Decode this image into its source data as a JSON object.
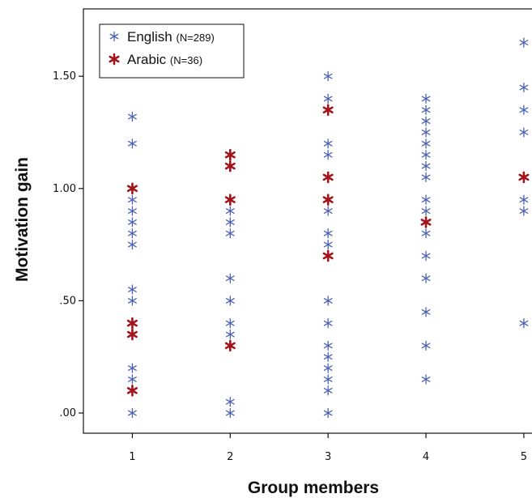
{
  "chart_data": {
    "type": "scatter",
    "xlabel": "Group members",
    "ylabel": "Motivation gain",
    "x_ticks": [
      "1",
      "2",
      "3",
      "4",
      "5"
    ],
    "y_ticks": [
      ".00",
      ".50",
      "1.00",
      "1.50"
    ],
    "xlim": [
      0.5,
      5.1
    ],
    "ylim": [
      -0.09,
      1.8
    ],
    "grid": false,
    "legend_position": "top-left",
    "marker": "asterisk",
    "series": [
      {
        "name": "English",
        "n_label": "(N=289)",
        "color": "#4b62b6",
        "points": [
          [
            1,
            1.32
          ],
          [
            1,
            1.2
          ],
          [
            1,
            0.95
          ],
          [
            1,
            0.9
          ],
          [
            1,
            0.85
          ],
          [
            1,
            0.8
          ],
          [
            1,
            0.75
          ],
          [
            1,
            0.55
          ],
          [
            1,
            0.5
          ],
          [
            1,
            0.2
          ],
          [
            1,
            0.15
          ],
          [
            1,
            0.0
          ],
          [
            2,
            0.9
          ],
          [
            2,
            0.85
          ],
          [
            2,
            0.8
          ],
          [
            2,
            0.6
          ],
          [
            2,
            0.5
          ],
          [
            2,
            0.4
          ],
          [
            2,
            0.35
          ],
          [
            2,
            0.05
          ],
          [
            2,
            0.0
          ],
          [
            3,
            1.5
          ],
          [
            3,
            1.4
          ],
          [
            3,
            1.2
          ],
          [
            3,
            1.15
          ],
          [
            3,
            0.9
          ],
          [
            3,
            0.8
          ],
          [
            3,
            0.75
          ],
          [
            3,
            0.5
          ],
          [
            3,
            0.4
          ],
          [
            3,
            0.3
          ],
          [
            3,
            0.25
          ],
          [
            3,
            0.2
          ],
          [
            3,
            0.15
          ],
          [
            3,
            0.1
          ],
          [
            3,
            0.0
          ],
          [
            4,
            1.4
          ],
          [
            4,
            1.35
          ],
          [
            4,
            1.3
          ],
          [
            4,
            1.25
          ],
          [
            4,
            1.2
          ],
          [
            4,
            1.15
          ],
          [
            4,
            1.1
          ],
          [
            4,
            1.05
          ],
          [
            4,
            0.95
          ],
          [
            4,
            0.9
          ],
          [
            4,
            0.8
          ],
          [
            4,
            0.7
          ],
          [
            4,
            0.6
          ],
          [
            4,
            0.45
          ],
          [
            4,
            0.3
          ],
          [
            4,
            0.15
          ],
          [
            5,
            1.65
          ],
          [
            5,
            1.45
          ],
          [
            5,
            1.35
          ],
          [
            5,
            1.25
          ],
          [
            5,
            0.95
          ],
          [
            5,
            0.9
          ],
          [
            5,
            0.4
          ]
        ]
      },
      {
        "name": "Arabic",
        "n_label": "(N=36)",
        "color": "#a3141a",
        "points": [
          [
            1,
            1.0
          ],
          [
            1,
            0.4
          ],
          [
            1,
            0.35
          ],
          [
            1,
            0.1
          ],
          [
            2,
            1.15
          ],
          [
            2,
            1.1
          ],
          [
            2,
            0.95
          ],
          [
            2,
            0.3
          ],
          [
            3,
            1.35
          ],
          [
            3,
            1.05
          ],
          [
            3,
            0.95
          ],
          [
            3,
            0.7
          ],
          [
            4,
            0.85
          ],
          [
            5,
            1.05
          ]
        ]
      }
    ]
  }
}
